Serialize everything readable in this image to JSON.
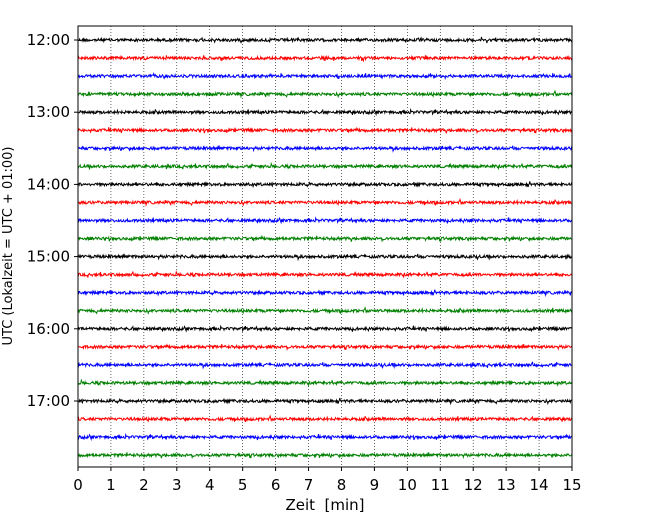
{
  "chart_data": {
    "type": "line",
    "title": "",
    "xlabel": "Zeit  [min]",
    "ylabel": "UTC (Lokalzeit = UTC + 01:00)",
    "xlim": [
      0,
      15
    ],
    "x_ticks": [
      0,
      1,
      2,
      3,
      4,
      5,
      6,
      7,
      8,
      9,
      10,
      11,
      12,
      13,
      14,
      15
    ],
    "y_tick_labels": [
      "12:00",
      "13:00",
      "14:00",
      "15:00",
      "16:00",
      "17:00"
    ],
    "rows_per_hour": 4,
    "minutes_per_row": 15,
    "trace_colors": [
      "#000000",
      "#ff0000",
      "#0000ff",
      "#008000"
    ],
    "grid": "vertical dotted",
    "series": [
      {
        "start": "12:00"
      },
      {
        "start": "12:15"
      },
      {
        "start": "12:30"
      },
      {
        "start": "12:45"
      },
      {
        "start": "13:00"
      },
      {
        "start": "13:15"
      },
      {
        "start": "13:30"
      },
      {
        "start": "13:45"
      },
      {
        "start": "14:00"
      },
      {
        "start": "14:15"
      },
      {
        "start": "14:30"
      },
      {
        "start": "14:45"
      },
      {
        "start": "15:00"
      },
      {
        "start": "15:15"
      },
      {
        "start": "15:30"
      },
      {
        "start": "15:45"
      },
      {
        "start": "16:00"
      },
      {
        "start": "16:15"
      },
      {
        "start": "16:30"
      },
      {
        "start": "16:45"
      },
      {
        "start": "17:00"
      },
      {
        "start": "17:15"
      },
      {
        "start": "17:30"
      },
      {
        "start": "17:45"
      }
    ]
  }
}
